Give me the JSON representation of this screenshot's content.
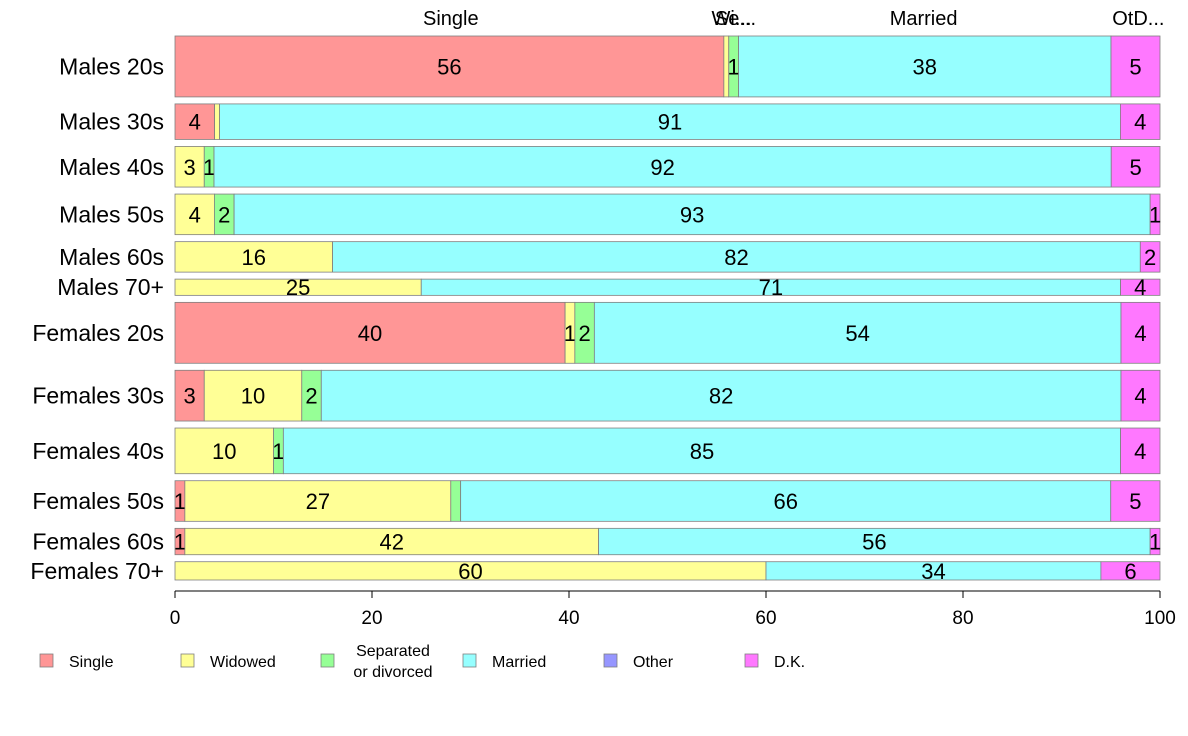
{
  "chart_data": {
    "type": "bar",
    "orientation": "horizontal",
    "stacked": true,
    "categories": [
      "Males 20s",
      "Males 30s",
      "Males 40s",
      "Males 50s",
      "Males 60s",
      "Males 70+",
      "Females 20s",
      "Females 30s",
      "Females 40s",
      "Females 50s",
      "Females 60s",
      "Females 70+"
    ],
    "category_weights": [
      60,
      35,
      40,
      40,
      30,
      16,
      60,
      50,
      45,
      40,
      26,
      18
    ],
    "series": [
      {
        "name": "Single",
        "color": "#ff9696",
        "values": [
          56,
          4,
          0,
          0,
          0,
          0,
          40,
          3,
          0,
          1,
          1,
          0
        ]
      },
      {
        "name": "Widowed",
        "color": "#ffff96",
        "values": [
          0.5,
          0.5,
          3,
          4,
          16,
          25,
          1,
          10,
          10,
          27,
          42,
          60
        ]
      },
      {
        "name": "Separated\nor divorced",
        "color": "#96ff96",
        "values": [
          1,
          0,
          1,
          2,
          0,
          0,
          2,
          2,
          1,
          1,
          0,
          0
        ]
      },
      {
        "name": "Married",
        "color": "#96ffff",
        "values": [
          38,
          91,
          92,
          93,
          82,
          71,
          54,
          82,
          85,
          66,
          56,
          34
        ]
      },
      {
        "name": "Other",
        "color": "#9696ff",
        "values": [
          0,
          0,
          0,
          0,
          0,
          0,
          0,
          0,
          0,
          0,
          0,
          0
        ]
      },
      {
        "name": "D.K.",
        "color": "#ff78ff",
        "values": [
          5,
          4,
          5,
          1,
          2,
          4,
          4,
          4,
          4,
          5,
          1,
          6
        ]
      }
    ],
    "data_labels": [
      [
        "56",
        "",
        "1",
        "38",
        "",
        "5"
      ],
      [
        "4",
        "",
        "",
        "91",
        "",
        "4"
      ],
      [
        "",
        "3",
        "1",
        "92",
        "",
        "5"
      ],
      [
        "",
        "4",
        "2",
        "93",
        "",
        "1"
      ],
      [
        "",
        "16",
        "",
        "82",
        "",
        "2"
      ],
      [
        "",
        "25",
        "",
        "71",
        "",
        "4"
      ],
      [
        "40",
        "1",
        "2",
        "54",
        "",
        "4"
      ],
      [
        "3",
        "10",
        "2",
        "82",
        "",
        "4"
      ],
      [
        "",
        "10",
        "1",
        "85",
        "",
        "4"
      ],
      [
        "1",
        "27",
        "",
        "66",
        "",
        "5"
      ],
      [
        "1",
        "42",
        "",
        "56",
        "",
        "1"
      ],
      [
        "",
        "60",
        "",
        "34",
        "",
        "6"
      ]
    ],
    "top_labels": [
      {
        "text": "Single",
        "at": 28
      },
      {
        "text": "Wi...",
        "at": 56.5
      },
      {
        "text": "Se...",
        "at": 56.9
      },
      {
        "text": "Married",
        "at": 76
      },
      {
        "text": "OtD...",
        "at": 97.8
      }
    ],
    "xlim": [
      0,
      100
    ],
    "xticks": [
      0,
      20,
      40,
      60,
      80,
      100
    ],
    "grid": false,
    "legend_position": "bottom"
  }
}
